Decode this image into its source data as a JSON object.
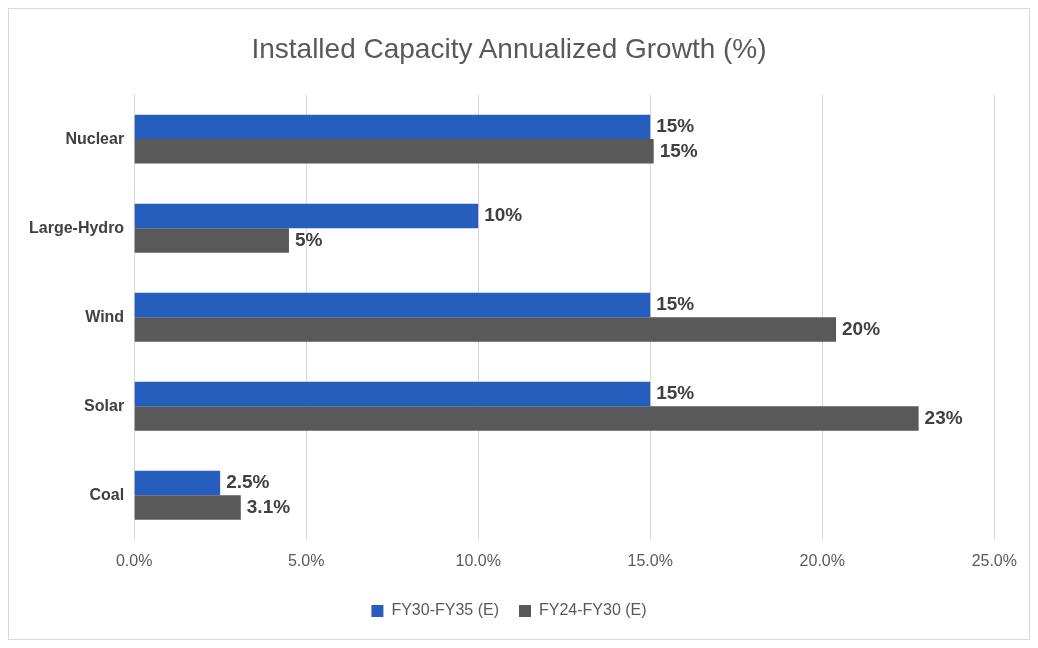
{
  "chart_data": {
    "type": "bar",
    "orientation": "horizontal",
    "title": "Installed Capacity Annualized Growth (%)",
    "categories": [
      "Nuclear",
      "Large-Hydro",
      "Wind",
      "Solar",
      "Coal"
    ],
    "series": [
      {
        "name": "FY30-FY35 (E)",
        "color": "#255ebd",
        "values": [
          15,
          10,
          15,
          15,
          2.5
        ],
        "value_labels": [
          "15%",
          "10%",
          "15%",
          "15%",
          "2.5%"
        ]
      },
      {
        "name": "FY24-FY30 (E)",
        "color": "#595959",
        "values": [
          15.1,
          4.5,
          20.4,
          22.8,
          3.1
        ],
        "value_labels": [
          "15%",
          "5%",
          "20%",
          "23%",
          "3.1%"
        ]
      }
    ],
    "xlim": [
      0,
      25
    ],
    "xticks": [
      {
        "value": 0,
        "label": "0.0%"
      },
      {
        "value": 5,
        "label": "5.0%"
      },
      {
        "value": 10,
        "label": "10.0%"
      },
      {
        "value": 15,
        "label": "15.0%"
      },
      {
        "value": 20,
        "label": "20.0%"
      },
      {
        "value": 25,
        "label": "25.0%"
      }
    ],
    "grid": "x",
    "legend": "bottom"
  }
}
